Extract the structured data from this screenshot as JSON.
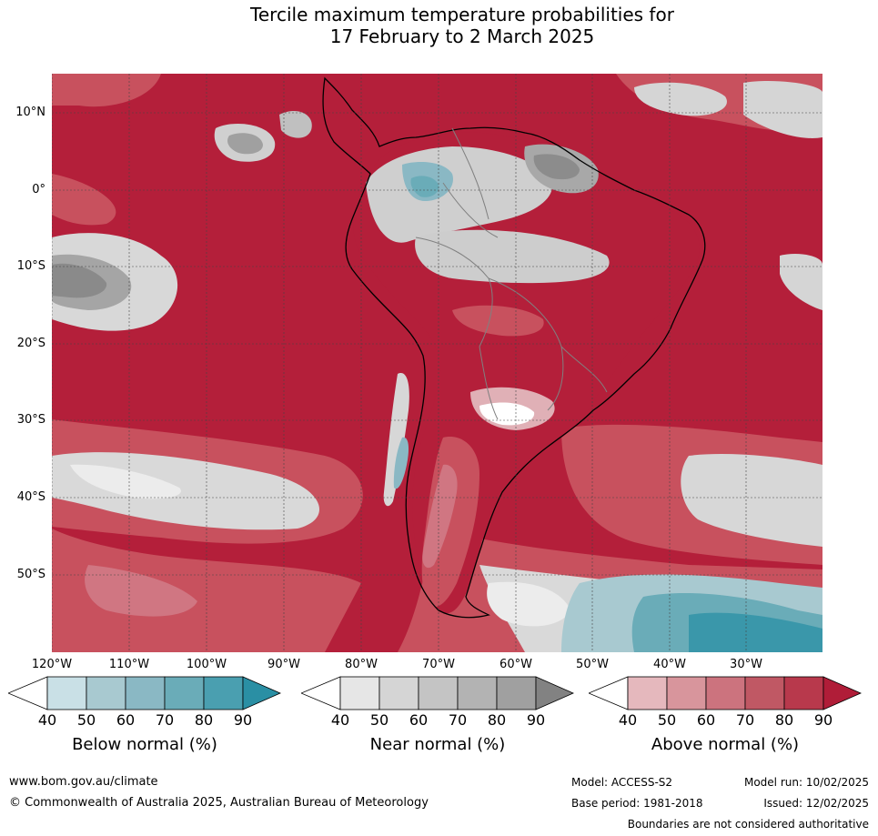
{
  "title": {
    "line1": "Tercile maximum temperature probabilities for",
    "line2": "17 February to 2 March 2025"
  },
  "map": {
    "lat_labels": [
      "10°N",
      "0°",
      "10°S",
      "20°S",
      "30°S",
      "40°S",
      "50°S"
    ],
    "lon_labels": [
      "120°W",
      "110°W",
      "100°W",
      "90°W",
      "80°W",
      "70°W",
      "60°W",
      "50°W",
      "40°W",
      "30°W"
    ],
    "colors": {
      "above_dominant": "#b41f3a",
      "ocean_light": "#c8515e",
      "near_grey": "#c8c8c8",
      "below_blue": "#3a97aa"
    }
  },
  "colorbars": [
    {
      "title": "Below normal (%)",
      "ticks": [
        "40",
        "50",
        "60",
        "70",
        "80",
        "90"
      ],
      "colors": [
        "#ffffff",
        "#c9e0e6",
        "#a8c9d0",
        "#8ab8c4",
        "#6aacb8",
        "#4a9fb0",
        "#2a8fa4"
      ]
    },
    {
      "title": "Near normal (%)",
      "ticks": [
        "40",
        "50",
        "60",
        "70",
        "80",
        "90"
      ],
      "colors": [
        "#ffffff",
        "#e6e6e6",
        "#d5d5d5",
        "#c4c4c4",
        "#b3b3b3",
        "#a0a0a0",
        "#828282"
      ]
    },
    {
      "title": "Above normal (%)",
      "ticks": [
        "40",
        "50",
        "60",
        "70",
        "80",
        "90"
      ],
      "colors": [
        "#ffffff",
        "#e5b8bd",
        "#d8959c",
        "#cc737e",
        "#c05864",
        "#b8394c",
        "#b01d38"
      ]
    }
  ],
  "footer": {
    "website": "www.bom.gov.au/climate",
    "copyright": "© Commonwealth of Australia 2025, Australian Bureau of Meteorology",
    "model": "Model: ACCESS-S2",
    "base_period": "Base period: 1981-2018",
    "model_run": "Model run: 10/02/2025",
    "issued": "Issued: 12/02/2025",
    "disclaimer": "Boundaries are not considered authoritative"
  }
}
